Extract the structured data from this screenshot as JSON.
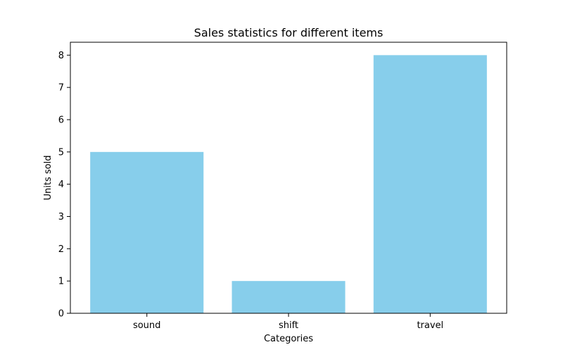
{
  "chart_data": {
    "type": "bar",
    "title": "Sales statistics for different items",
    "xlabel": "Categories",
    "ylabel": "Units sold",
    "categories": [
      "sound",
      "shift",
      "travel"
    ],
    "values": [
      5,
      1,
      8
    ],
    "ylim": [
      0,
      8.4
    ],
    "yticks": [
      "0",
      "1",
      "2",
      "3",
      "4",
      "5",
      "6",
      "7",
      "8"
    ],
    "grid": false,
    "bar_color": "#87CEEB"
  }
}
